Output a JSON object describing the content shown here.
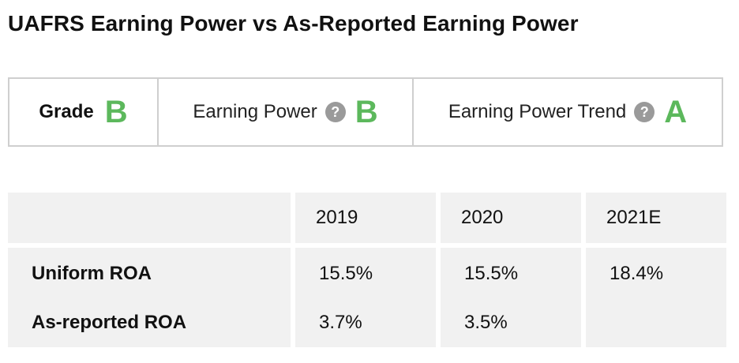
{
  "title": "UAFRS Earning Power vs As-Reported Earning Power",
  "grades": {
    "grade": {
      "label": "Grade",
      "value": "B"
    },
    "earning_power": {
      "label": "Earning Power",
      "value": "B",
      "help_icon": "question-circle-icon"
    },
    "earning_power_trend": {
      "label": "Earning Power Trend",
      "value": "A",
      "help_icon": "question-circle-icon"
    },
    "accent_color": "#5cb85c"
  },
  "table": {
    "columns": [
      "",
      "2019",
      "2020",
      "2021E"
    ],
    "rows": [
      {
        "label": "Uniform ROA",
        "values": [
          "15.5%",
          "15.5%",
          "18.4%"
        ]
      },
      {
        "label": "As-reported ROA",
        "values": [
          "3.7%",
          "3.5%",
          ""
        ]
      }
    ]
  }
}
